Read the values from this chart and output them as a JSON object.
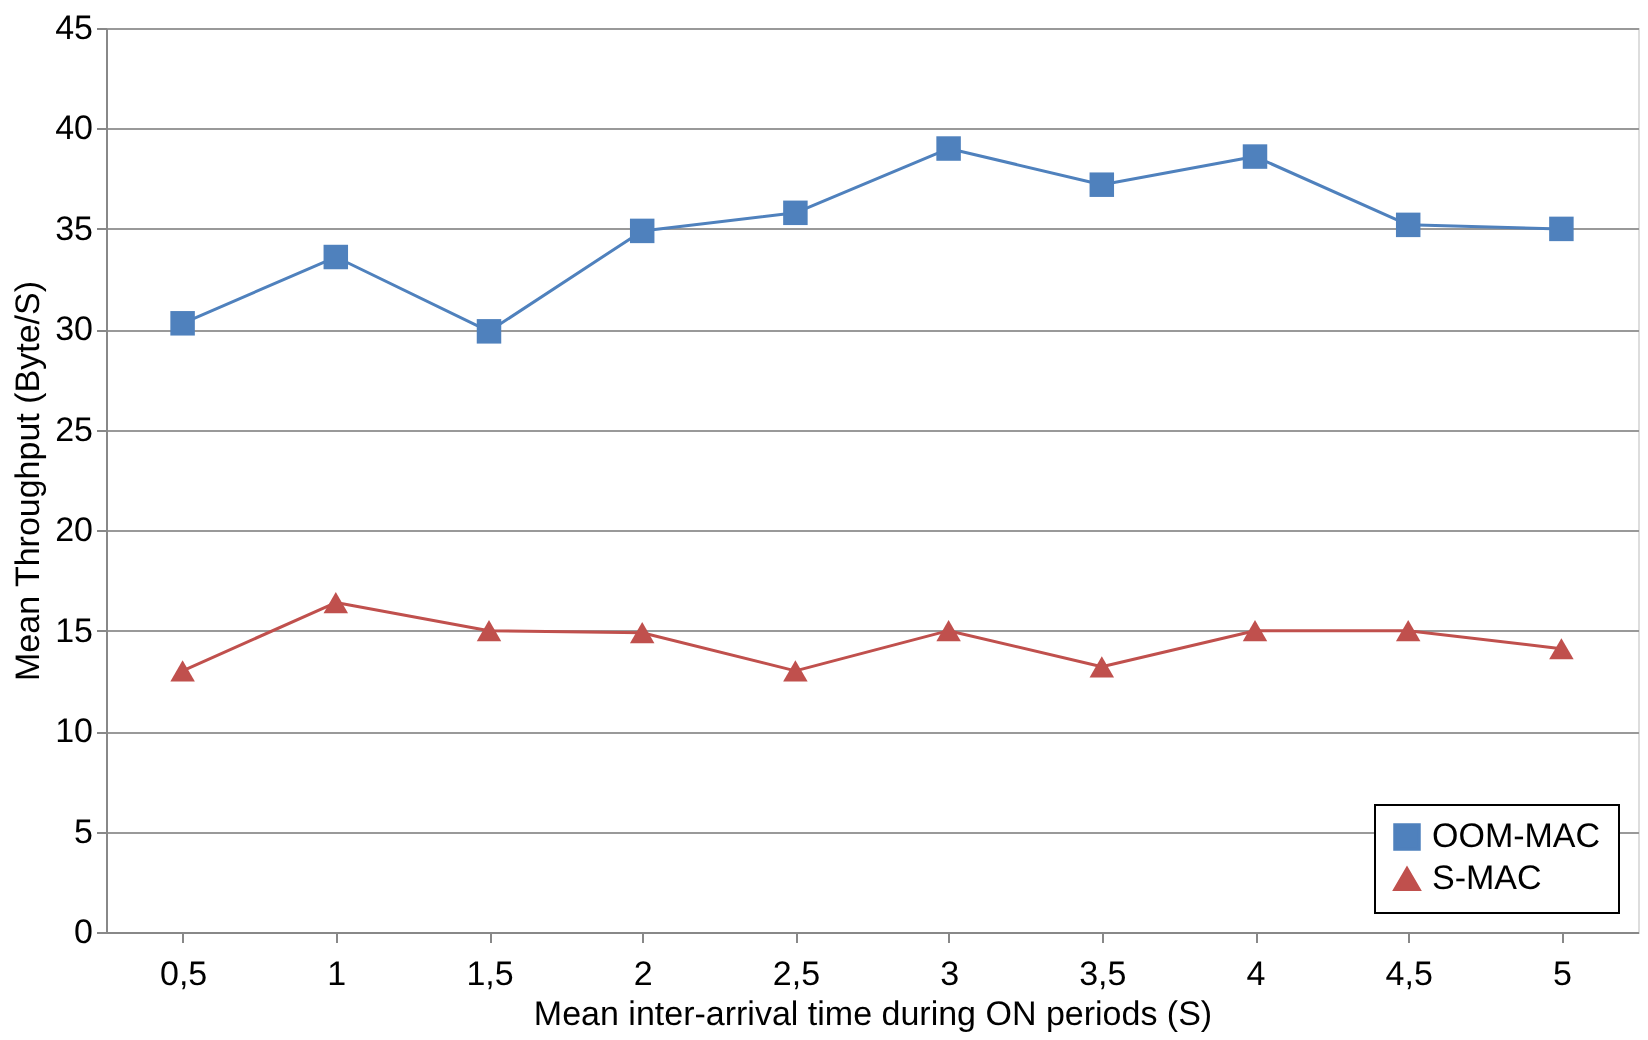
{
  "chart_data": {
    "type": "line",
    "xlabel": "Mean inter-arrival time during ON periods (S)",
    "ylabel": "Mean Throughput (Byte/S)",
    "categories": [
      "0,5",
      "1",
      "1,5",
      "2",
      "2,5",
      "3",
      "3,5",
      "4",
      "4,5",
      "5"
    ],
    "series": [
      {
        "name": "OOM-MAC",
        "color": "#4f81bd",
        "marker": "square",
        "values": [
          30.3,
          33.6,
          29.9,
          34.9,
          35.8,
          39,
          37.2,
          38.6,
          35.2,
          35
        ]
      },
      {
        "name": "S-MAC",
        "color": "#c0504d",
        "marker": "triangle",
        "values": [
          13,
          16.4,
          15,
          14.9,
          13,
          15,
          13.2,
          15,
          15,
          14.1
        ]
      }
    ],
    "ylim": [
      0,
      45
    ],
    "yticks": [
      0,
      5,
      10,
      15,
      20,
      25,
      30,
      35,
      40,
      45
    ],
    "grid": "y",
    "legend": "bottom right",
    "line_style": "solid"
  }
}
